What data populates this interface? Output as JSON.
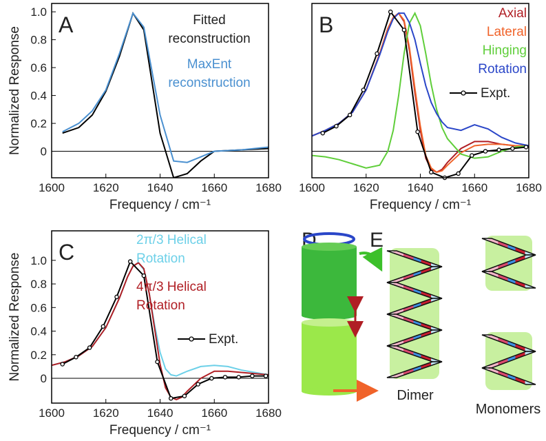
{
  "chart_data": [
    {
      "type": "line",
      "label": "A",
      "xlabel": "Frequency / cm⁻¹",
      "ylabel": "Normalized Response",
      "xlim": [
        1600,
        1680
      ],
      "ylim": [
        -0.19,
        1.06
      ],
      "xticks": [
        1600,
        1620,
        1640,
        1660,
        1680
      ],
      "yticks": [
        0,
        0.2,
        0.4,
        0.6,
        0.8,
        {
          "value": 1,
          "label": "1.0"
        }
      ],
      "series": [
        {
          "name": "Fitted reconstruction",
          "color": "#000000",
          "x": [
            1604,
            1610,
            1615,
            1620,
            1625,
            1630,
            1634,
            1640,
            1645,
            1650,
            1655,
            1660,
            1670,
            1680
          ],
          "values": [
            0.13,
            0.17,
            0.26,
            0.43,
            0.68,
            0.99,
            0.87,
            0.13,
            -0.19,
            -0.16,
            -0.07,
            0,
            0.01,
            0.02
          ]
        },
        {
          "name": "MaxEnt reconstruction",
          "color": "#4a90d0",
          "x": [
            1604,
            1610,
            1615,
            1620,
            1625,
            1630,
            1634,
            1640,
            1645,
            1650,
            1655,
            1660,
            1670,
            1680
          ],
          "values": [
            0.14,
            0.2,
            0.29,
            0.44,
            0.7,
            0.99,
            0.89,
            0.26,
            -0.07,
            -0.08,
            -0.04,
            0,
            0.01,
            0.03
          ]
        }
      ]
    },
    {
      "type": "line",
      "label": "B",
      "xlabel": "Frequency / cm⁻¹",
      "xlim": [
        1600,
        1680
      ],
      "ylim": [
        -0.19,
        1.06
      ],
      "xticks": [
        1600,
        1620,
        1640,
        1660,
        1680
      ],
      "series": [
        {
          "name": "Axial",
          "color": "#b01e24",
          "x": [
            1600,
            1605,
            1610,
            1615,
            1620,
            1625,
            1628,
            1630,
            1632,
            1634,
            1636,
            1638,
            1640,
            1642,
            1644,
            1646,
            1648,
            1650,
            1655,
            1660,
            1665,
            1670,
            1675,
            1680
          ],
          "values": [
            0.11,
            0.15,
            0.2,
            0.28,
            0.44,
            0.7,
            0.88,
            0.96,
            0.99,
            0.93,
            0.72,
            0.42,
            0.15,
            -0.05,
            -0.13,
            -0.15,
            -0.13,
            -0.08,
            0.02,
            0.07,
            0.07,
            0.05,
            0.04,
            0.03
          ]
        },
        {
          "name": "Lateral",
          "color": "#f0632a",
          "x": [
            1600,
            1605,
            1610,
            1615,
            1620,
            1625,
            1628,
            1630,
            1632,
            1634,
            1636,
            1638,
            1640,
            1642,
            1644,
            1646,
            1648,
            1650,
            1655,
            1660,
            1665,
            1670,
            1675,
            1680
          ],
          "values": [
            0.11,
            0.15,
            0.2,
            0.28,
            0.44,
            0.7,
            0.88,
            0.96,
            0.99,
            0.94,
            0.74,
            0.45,
            0.18,
            -0.03,
            -0.12,
            -0.15,
            -0.14,
            -0.1,
            -0.01,
            0.04,
            0.05,
            0.05,
            0.04,
            0.04
          ]
        },
        {
          "name": "Hinging",
          "color": "#5fce3a",
          "x": [
            1600,
            1605,
            1610,
            1615,
            1620,
            1625,
            1628,
            1630,
            1632,
            1634,
            1636,
            1638,
            1640,
            1642,
            1644,
            1646,
            1648,
            1650,
            1655,
            1660,
            1665,
            1670,
            1675,
            1680
          ],
          "values": [
            -0.03,
            -0.04,
            -0.06,
            -0.09,
            -0.12,
            -0.1,
            0,
            0.15,
            0.4,
            0.7,
            0.92,
            0.99,
            0.9,
            0.7,
            0.48,
            0.3,
            0.17,
            0.09,
            -0.02,
            -0.05,
            -0.04,
            0,
            0.03,
            0.04
          ]
        },
        {
          "name": "Rotation",
          "color": "#2a46c8",
          "x": [
            1600,
            1605,
            1610,
            1615,
            1620,
            1625,
            1628,
            1630,
            1632,
            1634,
            1636,
            1638,
            1640,
            1642,
            1644,
            1646,
            1648,
            1650,
            1655,
            1660,
            1665,
            1670,
            1675,
            1680
          ],
          "values": [
            0.11,
            0.15,
            0.2,
            0.28,
            0.44,
            0.69,
            0.86,
            0.95,
            0.99,
            0.99,
            0.92,
            0.8,
            0.63,
            0.47,
            0.35,
            0.27,
            0.21,
            0.17,
            0.15,
            0.19,
            0.16,
            0.1,
            0.06,
            0.04
          ]
        },
        {
          "name": "Expt.",
          "color": "#000000",
          "marker": "o",
          "x": [
            1604,
            1609,
            1614,
            1619,
            1624,
            1629,
            1634,
            1639,
            1644,
            1649,
            1654,
            1659,
            1664,
            1669,
            1674,
            1679
          ],
          "values": [
            0.13,
            0.18,
            0.26,
            0.44,
            0.7,
            1,
            0.87,
            0.14,
            -0.15,
            -0.19,
            -0.16,
            -0.03,
            0,
            0.01,
            0.02,
            0.03
          ]
        }
      ]
    },
    {
      "type": "line",
      "label": "C",
      "xlabel": "Frequency / cm⁻¹",
      "ylabel": "Normalized Response",
      "xlim": [
        1600,
        1680
      ],
      "ylim": [
        -0.21,
        1.25
      ],
      "xticks": [
        1600,
        1620,
        1640,
        1660,
        1680
      ],
      "yticks": [
        0,
        0.2,
        0.4,
        0.6,
        0.8,
        {
          "value": 1,
          "label": "1.0"
        }
      ],
      "series": [
        {
          "name": "2π/3 Helical Rotation",
          "color": "#6cd0e8",
          "x": [
            1600,
            1605,
            1610,
            1615,
            1620,
            1625,
            1628,
            1630,
            1632,
            1634,
            1636,
            1638,
            1640,
            1642,
            1644,
            1646,
            1648,
            1650,
            1655,
            1660,
            1665,
            1670,
            1675,
            1680
          ],
          "values": [
            0.11,
            0.14,
            0.19,
            0.27,
            0.43,
            0.68,
            0.86,
            0.95,
            0.98,
            0.92,
            0.72,
            0.45,
            0.22,
            0.08,
            0.03,
            0.02,
            0.04,
            0.06,
            0.1,
            0.11,
            0.1,
            0.07,
            0.05,
            0.03
          ]
        },
        {
          "name": "4π/3 Helical Rotation",
          "color": "#b01e24",
          "x": [
            1600,
            1605,
            1610,
            1615,
            1620,
            1625,
            1628,
            1630,
            1632,
            1634,
            1636,
            1638,
            1640,
            1642,
            1644,
            1646,
            1648,
            1650,
            1655,
            1660,
            1665,
            1670,
            1675,
            1680
          ],
          "values": [
            0.11,
            0.14,
            0.19,
            0.27,
            0.43,
            0.68,
            0.86,
            0.95,
            0.98,
            0.93,
            0.72,
            0.42,
            0.12,
            -0.08,
            -0.16,
            -0.18,
            -0.16,
            -0.11,
            0.0,
            0.06,
            0.06,
            0.05,
            0.04,
            0.03
          ]
        },
        {
          "name": "Expt.",
          "color": "#000000",
          "marker": "o",
          "x": [
            1604,
            1609,
            1614,
            1619,
            1624,
            1629,
            1634,
            1639,
            1644,
            1649,
            1654,
            1659,
            1664,
            1669,
            1674,
            1679
          ],
          "values": [
            0.12,
            0.18,
            0.26,
            0.44,
            0.69,
            0.99,
            0.87,
            0.14,
            -0.17,
            -0.15,
            -0.05,
            0,
            0.01,
            0.01,
            0.02,
            0.02
          ]
        }
      ]
    }
  ],
  "diagram": {
    "labels": [
      "D",
      "E"
    ],
    "captions": [
      "Dimer",
      "Monomers"
    ]
  }
}
